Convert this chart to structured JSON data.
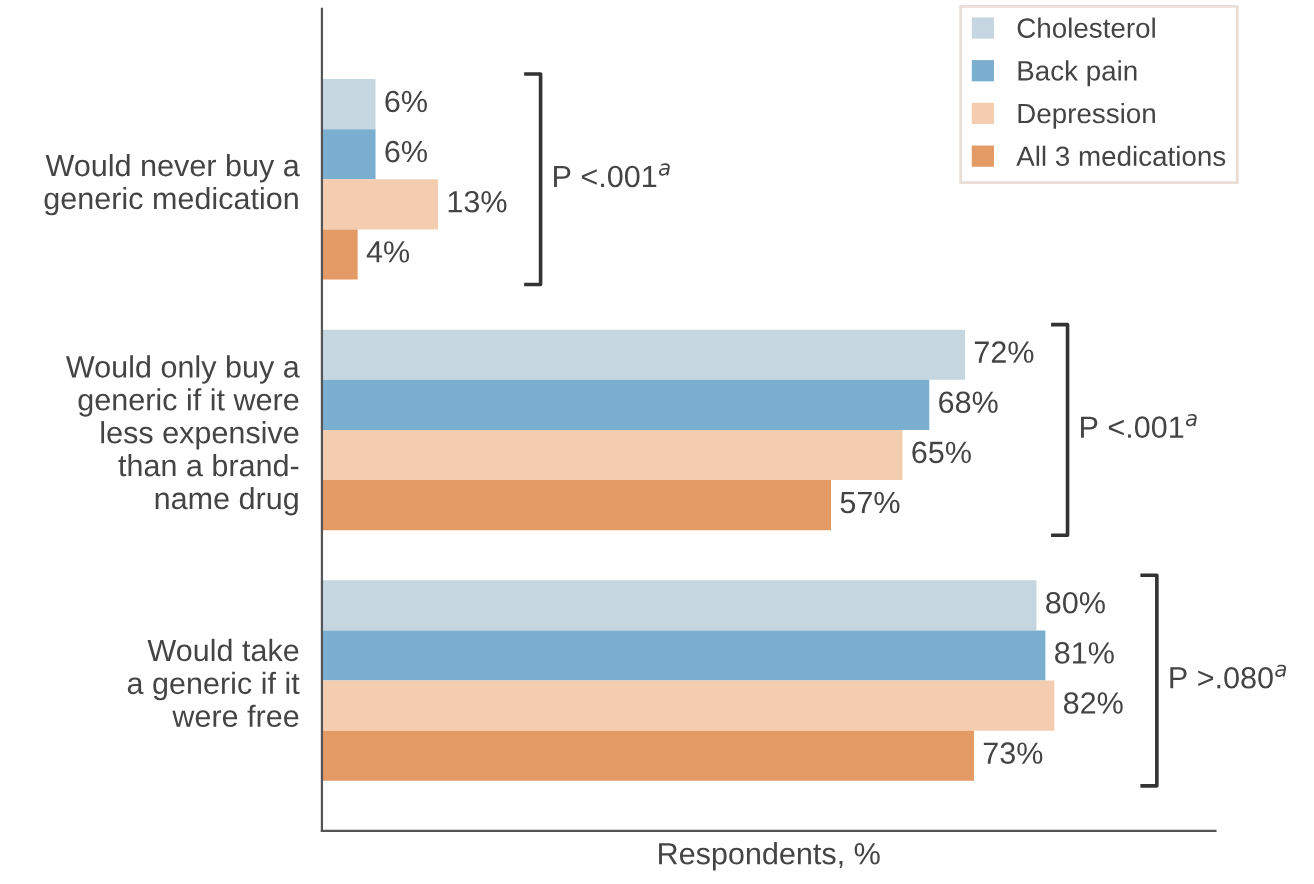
{
  "chart_data": {
    "type": "bar",
    "orientation": "horizontal",
    "xlabel": "Respondents, %",
    "categories": [
      "Would never buy a\ngeneric medication",
      "Would only buy a\ngeneric if it were\nless expensive\nthan a brand-\nname drug",
      "Would take\na generic if it\nwere free"
    ],
    "series": [
      {
        "name": "Cholesterol",
        "color": "#c5d6e0",
        "values": [
          6,
          72,
          80
        ],
        "value_labels": [
          "6%",
          "72%",
          "80%"
        ]
      },
      {
        "name": "Back pain",
        "color": "#7bafd0",
        "values": [
          6,
          68,
          81
        ],
        "value_labels": [
          "6%",
          "68%",
          "81%"
        ]
      },
      {
        "name": "Depression",
        "color": "#f4cdb0",
        "values": [
          13,
          65,
          82
        ],
        "value_labels": [
          "13%",
          "65%",
          "82%"
        ]
      },
      {
        "name": "All 3 medications",
        "color": "#e49a64",
        "values": [
          4,
          57,
          73
        ],
        "value_labels": [
          "4%",
          "57%",
          "73%"
        ]
      }
    ],
    "annotations": [
      "P <.001$^{a}$",
      "P <.001$^{a}$",
      "P >.080$^{a}$"
    ],
    "legend": "top right",
    "tick_labels": "y",
    "grid": false
  }
}
